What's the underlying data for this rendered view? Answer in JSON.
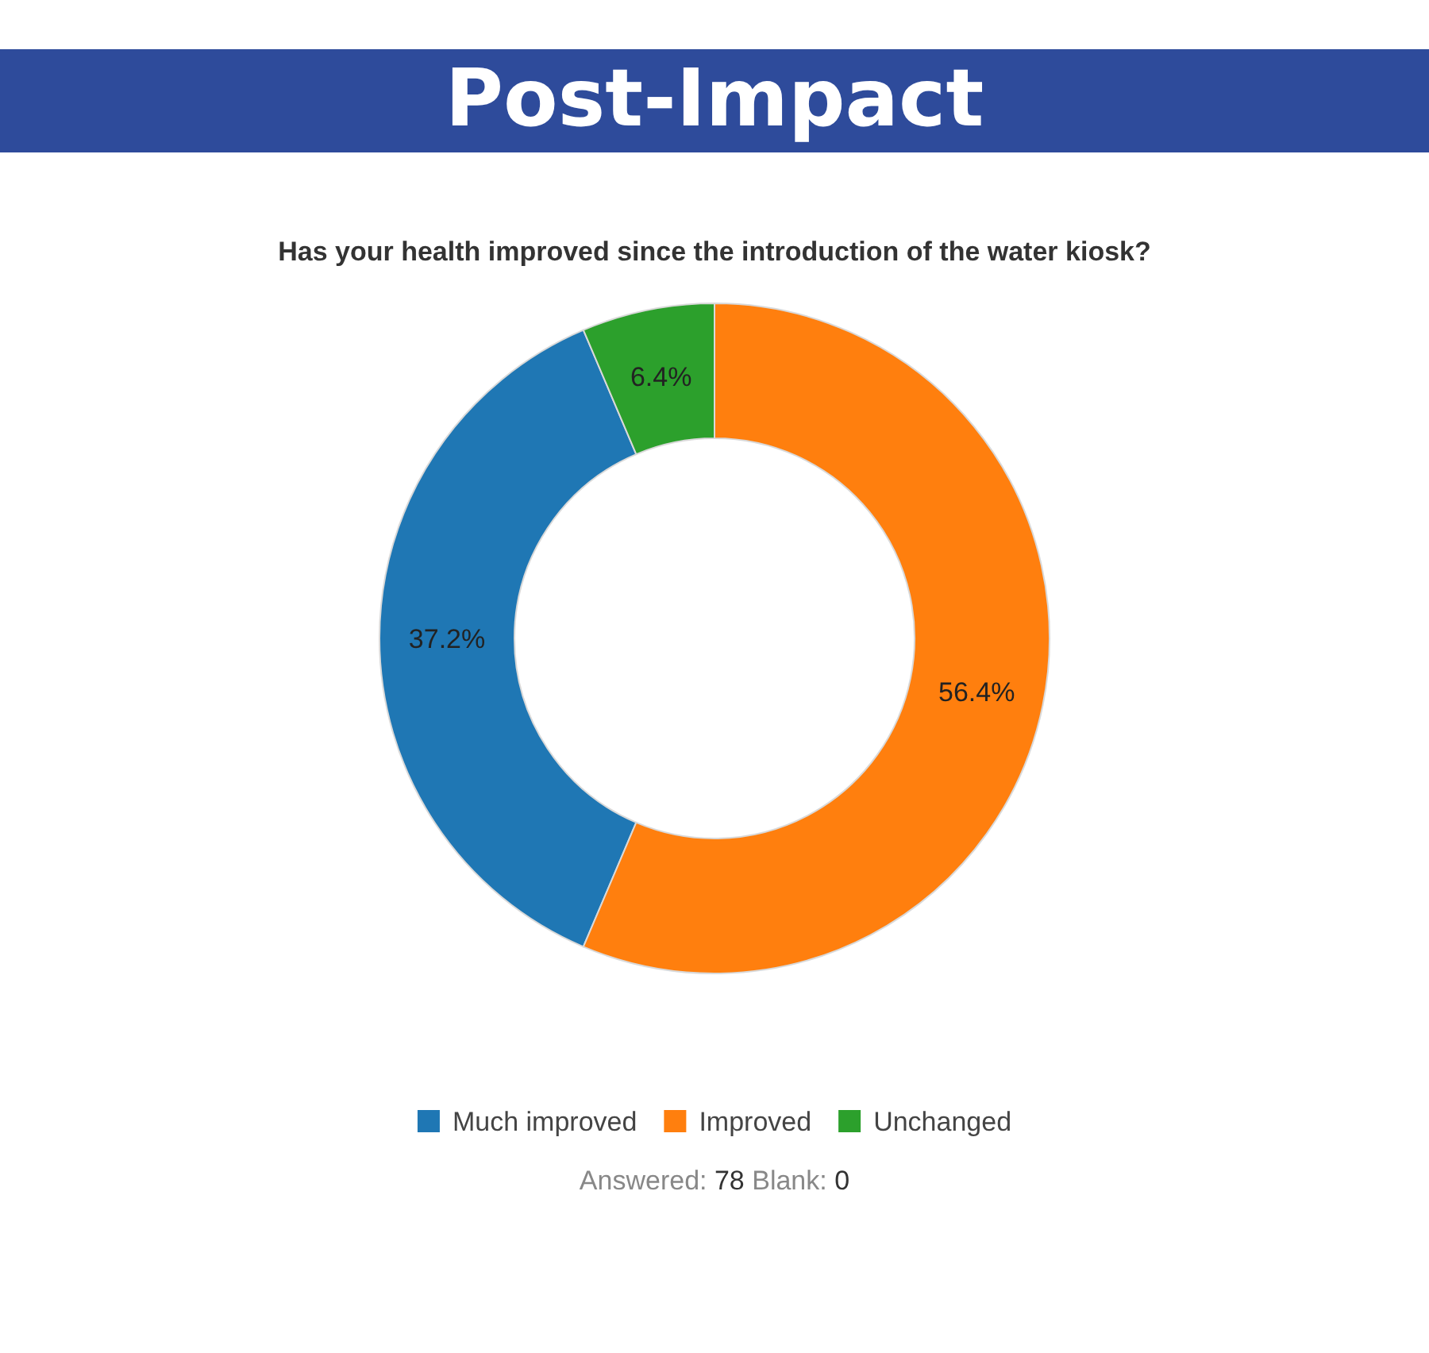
{
  "chart_data": {
    "type": "donut",
    "title": "Post-Impact",
    "subtitle": "Has your health improved since the introduction of the water kiosk?",
    "categories": [
      "Much improved",
      "Improved",
      "Unchanged"
    ],
    "values": [
      37.2,
      56.4,
      6.4
    ],
    "colors": [
      "#1f77b4",
      "#ff7f0e",
      "#2ca02c"
    ],
    "value_labels": [
      "37.2%",
      "56.4%",
      "6.4%"
    ],
    "legend": "bottom",
    "annotations": [
      "Answered: 78 Blank: 0"
    ]
  }
}
